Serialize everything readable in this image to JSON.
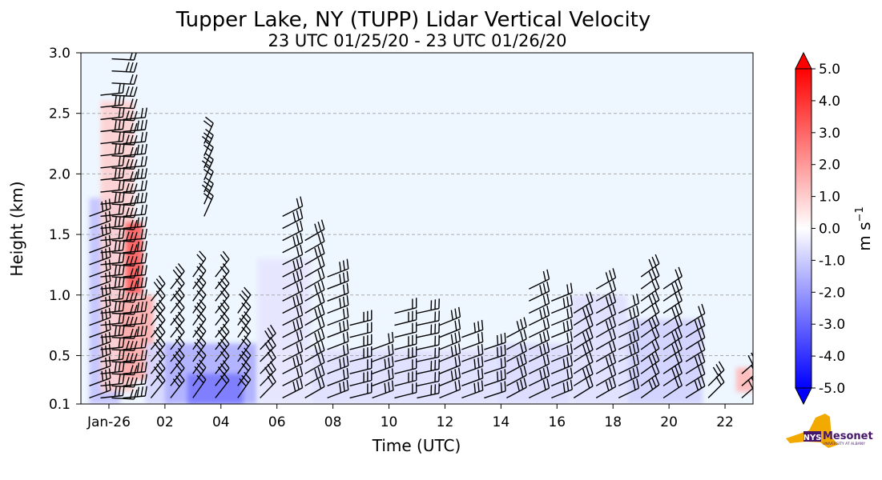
{
  "chart_data": {
    "type": "heatmap",
    "title": "Tupper Lake, NY (TUPP) Lidar Vertical Velocity",
    "subtitle": "23 UTC 01/25/20 - 23 UTC 01/26/20",
    "xlabel": "Time (UTC)",
    "ylabel": "Height (km)",
    "xlim": [
      -1,
      23
    ],
    "ylim": [
      0.1,
      3.0
    ],
    "x_ticks": [
      {
        "value": 0,
        "label": "Jan-26"
      },
      {
        "value": 2,
        "label": "02"
      },
      {
        "value": 4,
        "label": "04"
      },
      {
        "value": 6,
        "label": "06"
      },
      {
        "value": 8,
        "label": "08"
      },
      {
        "value": 10,
        "label": "10"
      },
      {
        "value": 12,
        "label": "12"
      },
      {
        "value": 14,
        "label": "14"
      },
      {
        "value": 16,
        "label": "16"
      },
      {
        "value": 18,
        "label": "18"
      },
      {
        "value": 20,
        "label": "20"
      },
      {
        "value": 22,
        "label": "22"
      }
    ],
    "y_ticks": [
      {
        "value": 0.1,
        "label": "0.1"
      },
      {
        "value": 0.5,
        "label": "0.5"
      },
      {
        "value": 1.0,
        "label": "1.0"
      },
      {
        "value": 1.5,
        "label": "1.5"
      },
      {
        "value": 2.0,
        "label": "2.0"
      },
      {
        "value": 2.5,
        "label": "2.5"
      },
      {
        "value": 3.0,
        "label": "3.0"
      }
    ],
    "grid": "horizontal dashed",
    "colorbar": {
      "label": "m s",
      "label_exponent": "−1",
      "range": [
        -5,
        5
      ],
      "extend": "both",
      "ticks": [
        {
          "value": 5,
          "label": "5.0"
        },
        {
          "value": 4,
          "label": "4.0"
        },
        {
          "value": 3,
          "label": "3.0"
        },
        {
          "value": 2,
          "label": "2.0"
        },
        {
          "value": 1,
          "label": "1.0"
        },
        {
          "value": 0,
          "label": "0.0"
        },
        {
          "value": -1,
          "label": "-1.0"
        },
        {
          "value": -2,
          "label": "-2.0"
        },
        {
          "value": -3,
          "label": "-3.0"
        },
        {
          "value": -4,
          "label": "-4.0"
        },
        {
          "value": -5,
          "label": "-5.0"
        }
      ],
      "colors": {
        "neg": "#0000ff",
        "zero": "#ffffff",
        "pos": "#ff0000"
      }
    },
    "background_color": "#eef6ff",
    "velocity_regions": [
      {
        "t0": -0.7,
        "t1": 0.4,
        "h0": 0.1,
        "h1": 1.8,
        "w": -1.2
      },
      {
        "t0": -0.3,
        "t1": 0.9,
        "h0": 0.2,
        "h1": 2.6,
        "w": 0.9
      },
      {
        "t0": 0.6,
        "t1": 1.2,
        "h0": 1.0,
        "h1": 1.6,
        "w": 3.2
      },
      {
        "t0": 0.4,
        "t1": 1.6,
        "h0": 0.3,
        "h1": 1.0,
        "w": 1.6
      },
      {
        "t0": 1.3,
        "t1": 2.2,
        "h0": 0.1,
        "h1": 0.6,
        "w": -0.8
      },
      {
        "t0": 2.0,
        "t1": 5.3,
        "h0": 0.1,
        "h1": 0.6,
        "w": -1.6
      },
      {
        "t0": 2.8,
        "t1": 4.8,
        "h0": 0.1,
        "h1": 0.35,
        "w": -2.6
      },
      {
        "t0": 5.3,
        "t1": 7.2,
        "h0": 0.1,
        "h1": 1.3,
        "w": -0.5
      },
      {
        "t0": 7.2,
        "t1": 13.8,
        "h0": 0.1,
        "h1": 0.55,
        "w": -0.6
      },
      {
        "t0": 13.8,
        "t1": 16.5,
        "h0": 0.1,
        "h1": 0.6,
        "w": -0.7
      },
      {
        "t0": 16.5,
        "t1": 18.5,
        "h0": 0.1,
        "h1": 1.0,
        "w": -0.6
      },
      {
        "t0": 18.5,
        "t1": 21.2,
        "h0": 0.1,
        "h1": 0.8,
        "w": -0.9
      },
      {
        "t0": 22.4,
        "t1": 23.0,
        "h0": 0.2,
        "h1": 0.4,
        "w": 1.4
      }
    ],
    "wind_barb_columns": [
      {
        "t": -0.7,
        "h0": 0.1,
        "h1": 1.7,
        "dir": 250
      },
      {
        "t": -0.3,
        "h0": 0.1,
        "h1": 2.7,
        "dir": 260
      },
      {
        "t": 0.1,
        "h0": 0.1,
        "h1": 3.0,
        "dir": 265
      },
      {
        "t": 0.5,
        "h0": 0.1,
        "h1": 2.5,
        "dir": 265
      },
      {
        "t": 1.5,
        "h0": 0.1,
        "h1": 1.0,
        "dir": 215
      },
      {
        "t": 2.2,
        "h0": 0.1,
        "h1": 1.1,
        "dir": 210
      },
      {
        "t": 3.0,
        "h0": 0.1,
        "h1": 1.2,
        "dir": 215
      },
      {
        "t": 3.4,
        "h0": 1.6,
        "h1": 2.3,
        "dir": 200
      },
      {
        "t": 3.8,
        "h0": 0.1,
        "h1": 1.2,
        "dir": 210
      },
      {
        "t": 4.6,
        "h0": 0.1,
        "h1": 0.9,
        "dir": 215
      },
      {
        "t": 5.4,
        "h0": 0.1,
        "h1": 0.6,
        "dir": 220
      },
      {
        "t": 6.2,
        "h0": 0.1,
        "h1": 1.7,
        "dir": 235
      },
      {
        "t": 7.0,
        "h0": 0.1,
        "h1": 1.5,
        "dir": 240
      },
      {
        "t": 7.8,
        "h0": 0.1,
        "h1": 1.2,
        "dir": 245
      },
      {
        "t": 8.6,
        "h0": 0.1,
        "h1": 0.8,
        "dir": 248
      },
      {
        "t": 9.4,
        "h0": 0.1,
        "h1": 0.6,
        "dir": 250
      },
      {
        "t": 10.2,
        "h0": 0.1,
        "h1": 0.9,
        "dir": 252
      },
      {
        "t": 11.0,
        "h0": 0.1,
        "h1": 0.9,
        "dir": 250
      },
      {
        "t": 11.8,
        "h0": 0.1,
        "h1": 0.8,
        "dir": 248
      },
      {
        "t": 12.6,
        "h0": 0.1,
        "h1": 0.7,
        "dir": 246
      },
      {
        "t": 13.4,
        "h0": 0.1,
        "h1": 0.6,
        "dir": 244
      },
      {
        "t": 14.2,
        "h0": 0.1,
        "h1": 0.7,
        "dir": 242
      },
      {
        "t": 15.0,
        "h0": 0.1,
        "h1": 1.1,
        "dir": 240
      },
      {
        "t": 15.8,
        "h0": 0.1,
        "h1": 1.0,
        "dir": 240
      },
      {
        "t": 16.6,
        "h0": 0.1,
        "h1": 0.9,
        "dir": 238
      },
      {
        "t": 17.4,
        "h0": 0.1,
        "h1": 1.1,
        "dir": 236
      },
      {
        "t": 18.2,
        "h0": 0.1,
        "h1": 0.9,
        "dir": 236
      },
      {
        "t": 19.0,
        "h0": 0.1,
        "h1": 1.2,
        "dir": 234
      },
      {
        "t": 19.8,
        "h0": 0.1,
        "h1": 1.1,
        "dir": 232
      },
      {
        "t": 20.6,
        "h0": 0.1,
        "h1": 0.8,
        "dir": 230
      },
      {
        "t": 21.4,
        "h0": 0.1,
        "h1": 0.3,
        "dir": 225
      },
      {
        "t": 22.6,
        "h0": 0.1,
        "h1": 0.4,
        "dir": 225
      }
    ]
  },
  "logo": {
    "text": "Mesonet",
    "badge": "NYS",
    "sub": "UNIVERSITY AT ALBANY",
    "colors": {
      "state": "#f2a900",
      "brand": "#46166b"
    }
  }
}
